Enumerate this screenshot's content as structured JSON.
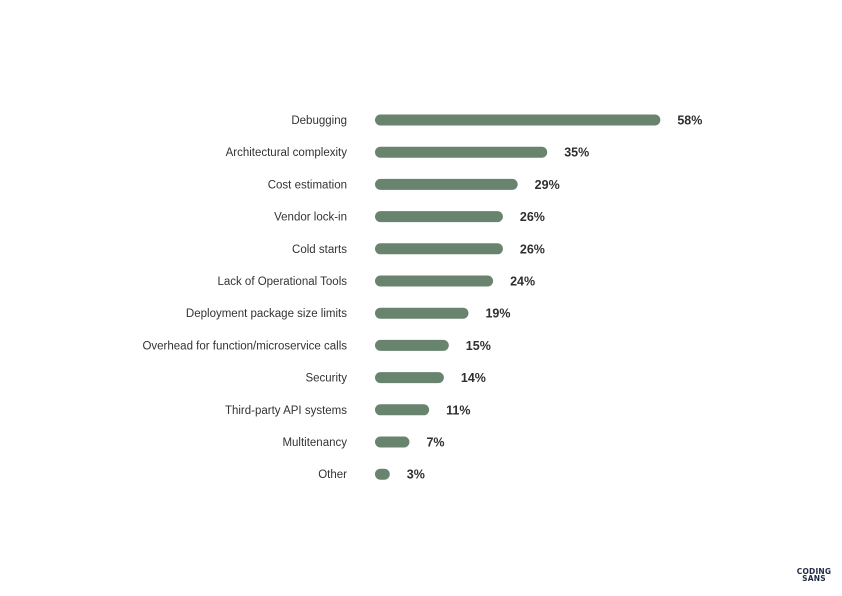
{
  "chart_data": {
    "type": "bar",
    "orientation": "horizontal",
    "categories": [
      "Debugging",
      "Architectural complexity",
      "Cost estimation",
      "Vendor lock-in",
      "Cold starts",
      "Lack of Operational Tools",
      "Deployment package size limits",
      "Overhead for function/microservice calls",
      "Security",
      "Third-party API systems",
      "Multitenancy",
      "Other"
    ],
    "values": [
      58,
      35,
      29,
      26,
      26,
      24,
      19,
      15,
      14,
      11,
      7,
      3
    ],
    "value_labels": [
      "58%",
      "35%",
      "29%",
      "26%",
      "26%",
      "24%",
      "19%",
      "15%",
      "14%",
      "11%",
      "7%",
      "3%"
    ],
    "unit": "%",
    "title": "",
    "xlabel": "",
    "ylabel": "",
    "grid": false,
    "legend": "none",
    "bar_color": "#68836e"
  },
  "logo": {
    "line1": "CODING",
    "line2": "SANS"
  }
}
